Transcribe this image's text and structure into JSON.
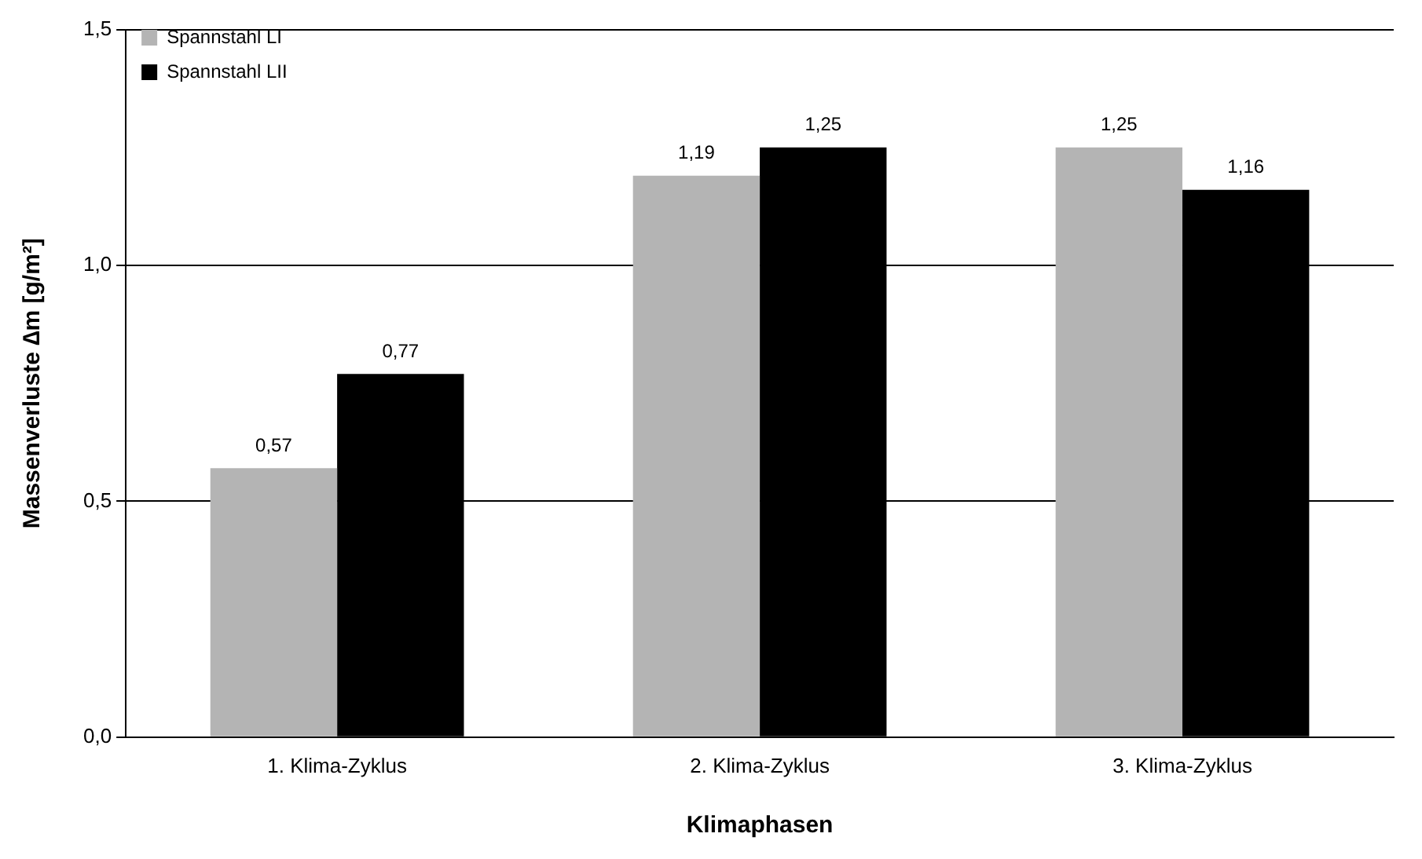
{
  "chart_data": {
    "type": "bar",
    "xlabel": "Klimaphasen",
    "ylabel": "Massenverluste ∆m [g/m²]",
    "categories": [
      "1. Klima-Zyklus",
      "2. Klima-Zyklus",
      "3. Klima-Zyklus"
    ],
    "series": [
      {
        "name": "Spannstahl LI",
        "color": "#b4b4b4",
        "values": [
          0.57,
          1.19,
          1.25
        ],
        "value_labels": [
          "0,57",
          "1,19",
          "1,25"
        ]
      },
      {
        "name": "Spannstahl LII",
        "color": "#000000",
        "values": [
          0.77,
          1.25,
          1.16
        ],
        "value_labels": [
          "0,77",
          "1,25",
          "1,16"
        ]
      }
    ],
    "ylim": [
      0,
      1.5
    ],
    "yticks": [
      {
        "value": 0,
        "label": "0,0"
      },
      {
        "value": 0.5,
        "label": "0,5"
      },
      {
        "value": 1,
        "label": "1,0"
      },
      {
        "value": 1.5,
        "label": "1,5"
      }
    ],
    "grid": "y",
    "legend": "top left"
  }
}
